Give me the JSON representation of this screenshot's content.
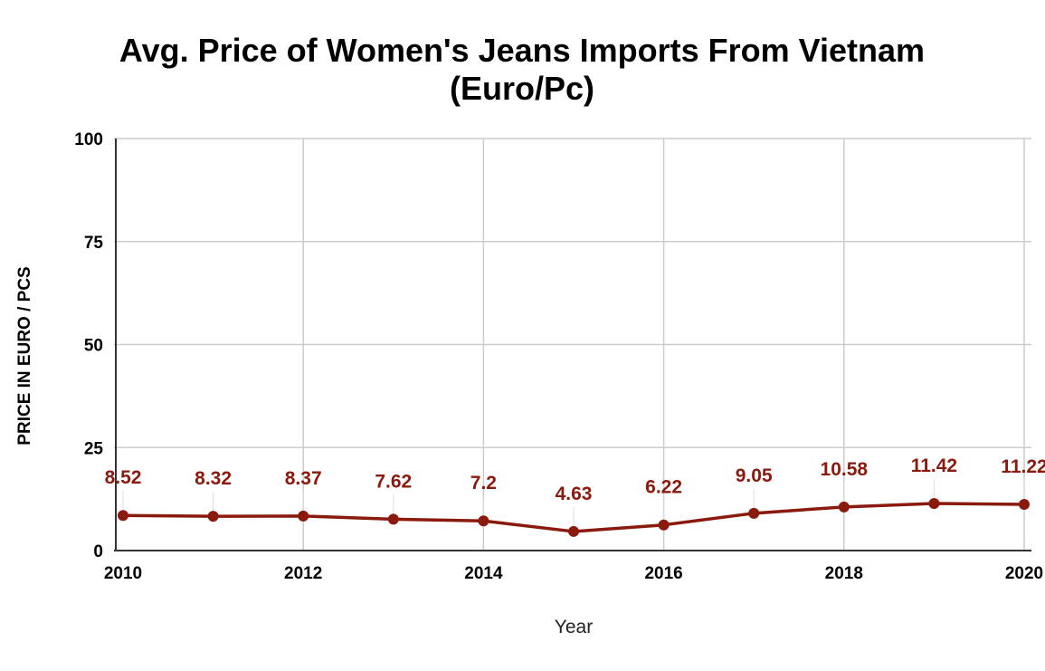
{
  "chart_data": {
    "type": "line",
    "title_lines": [
      "Avg. Price of Women's Jeans Imports From Vietnam",
      "(Euro/Pc)"
    ],
    "xlabel": "Year",
    "ylabel": "PRICE IN EURO / PCS",
    "x": [
      2010,
      2011,
      2012,
      2013,
      2014,
      2015,
      2016,
      2017,
      2018,
      2019,
      2020
    ],
    "x_tick_labels": [
      "2010",
      "2012",
      "2014",
      "2016",
      "2018",
      "2020"
    ],
    "y_tick_labels": [
      "0",
      "25",
      "50",
      "75",
      "100"
    ],
    "xlim": [
      2010,
      2020
    ],
    "ylim": [
      0,
      100
    ],
    "grid": true,
    "series": [
      {
        "values": [
          8.52,
          8.32,
          8.37,
          7.62,
          7.2,
          4.63,
          6.22,
          9.05,
          10.58,
          11.42,
          11.22
        ],
        "labels": [
          "8.52",
          "8.32",
          "8.37",
          "7.62",
          "7.2",
          "4.63",
          "6.22",
          "9.05",
          "10.58",
          "11.42",
          "11.22"
        ],
        "color": "#8b1a0e"
      }
    ],
    "colors": {
      "grid": "#cccccc",
      "axis": "#333333",
      "label_leader": "#dddddd"
    }
  }
}
